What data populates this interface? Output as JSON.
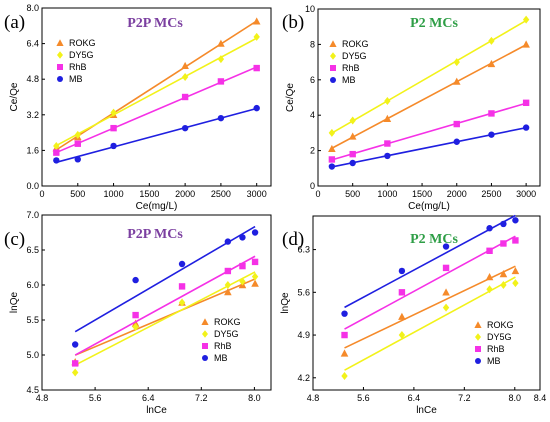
{
  "colors": {
    "ROKG": "#f58a2a",
    "DY5G": "#f2f21a",
    "RhB": "#f531e6",
    "MB": "#1f1fe0",
    "title_purple": "#7b3fa0",
    "title_green": "#2e9e46"
  },
  "chart_data": [
    {
      "type": "scatter",
      "panel_label": "(a)",
      "title": "P2P MCs",
      "title_color": "purple",
      "xlabel": "Ce(mg/L)",
      "ylabel": "Ce/Qe",
      "xlim": [
        0,
        3200
      ],
      "ylim": [
        0.0,
        8.0
      ],
      "xticks": [
        "0",
        "500",
        "1000",
        "1500",
        "2000",
        "2500",
        "3000"
      ],
      "yticks": [
        "0.0",
        "1.6",
        "3.2",
        "4.8",
        "6.4",
        "8.0"
      ],
      "legend_position": "top-left",
      "series": [
        {
          "name": "ROKG",
          "marker": "triangle",
          "x": [
            200,
            500,
            1000,
            2000,
            2500,
            3000
          ],
          "y": [
            1.7,
            2.2,
            3.2,
            5.4,
            6.4,
            7.4
          ]
        },
        {
          "name": "DY5G",
          "marker": "diamond",
          "x": [
            200,
            500,
            1000,
            2000,
            2500,
            3000
          ],
          "y": [
            1.8,
            2.3,
            3.3,
            4.9,
            5.7,
            6.7
          ]
        },
        {
          "name": "RhB",
          "marker": "square",
          "x": [
            200,
            500,
            1000,
            2000,
            2500,
            3000
          ],
          "y": [
            1.5,
            1.9,
            2.6,
            4.0,
            4.7,
            5.3
          ]
        },
        {
          "name": "MB",
          "marker": "circle",
          "x": [
            200,
            500,
            1000,
            2000,
            2500,
            3000
          ],
          "y": [
            1.15,
            1.2,
            1.8,
            2.6,
            3.05,
            3.5
          ]
        }
      ]
    },
    {
      "type": "scatter",
      "panel_label": "(b)",
      "title": "P2 MCs",
      "title_color": "green",
      "xlabel": "Ce(mg/L)",
      "ylabel": "Ce/Qe",
      "xlim": [
        0,
        3200
      ],
      "ylim": [
        0,
        10
      ],
      "xticks": [
        "0",
        "500",
        "1000",
        "1500",
        "2000",
        "2500",
        "3000"
      ],
      "yticks": [
        "0",
        "2",
        "4",
        "6",
        "8",
        "10"
      ],
      "legend_position": "top-left",
      "series": [
        {
          "name": "ROKG",
          "marker": "triangle",
          "x": [
            200,
            500,
            1000,
            2000,
            2500,
            3000
          ],
          "y": [
            2.1,
            2.8,
            3.8,
            5.9,
            6.9,
            8.0
          ]
        },
        {
          "name": "DY5G",
          "marker": "diamond",
          "x": [
            200,
            500,
            1000,
            2000,
            2500,
            3000
          ],
          "y": [
            3.0,
            3.7,
            4.8,
            7.0,
            8.2,
            9.4
          ]
        },
        {
          "name": "RhB",
          "marker": "square",
          "x": [
            200,
            500,
            1000,
            2000,
            2500,
            3000
          ],
          "y": [
            1.5,
            1.8,
            2.4,
            3.5,
            4.1,
            4.7
          ]
        },
        {
          "name": "MB",
          "marker": "circle",
          "x": [
            200,
            500,
            1000,
            2000,
            2500,
            3000
          ],
          "y": [
            1.1,
            1.3,
            1.7,
            2.5,
            2.9,
            3.3
          ]
        }
      ]
    },
    {
      "type": "scatter",
      "panel_label": "(c)",
      "title": "P2P MCs",
      "title_color": "purple",
      "xlabel": "lnCe",
      "ylabel": "lnQe",
      "xlim": [
        4.8,
        8.25
      ],
      "ylim": [
        4.5,
        7.0
      ],
      "xticks": [
        "4.8",
        "5.6",
        "6.4",
        "7.2",
        "8.0"
      ],
      "yticks": [
        "4.5",
        "5.0",
        "5.5",
        "6.0",
        "6.5",
        "7.0"
      ],
      "legend_position": "bottom-right",
      "series": [
        {
          "name": "ROKG",
          "marker": "triangle",
          "x": [
            5.3,
            6.21,
            6.91,
            7.6,
            7.82,
            8.01
          ],
          "y": [
            4.9,
            5.45,
            5.75,
            5.9,
            6.0,
            6.02
          ]
        },
        {
          "name": "DY5G",
          "marker": "diamond",
          "x": [
            5.3,
            6.21,
            6.91,
            7.6,
            7.82,
            8.01
          ],
          "y": [
            4.75,
            5.4,
            5.75,
            6.0,
            6.05,
            6.12
          ]
        },
        {
          "name": "RhB",
          "marker": "square",
          "x": [
            5.3,
            6.21,
            6.91,
            7.6,
            7.82,
            8.01
          ],
          "y": [
            4.88,
            5.57,
            5.98,
            6.2,
            6.27,
            6.33
          ]
        },
        {
          "name": "MB",
          "marker": "circle",
          "x": [
            5.3,
            6.21,
            6.91,
            7.6,
            7.82,
            8.01
          ],
          "y": [
            5.15,
            6.07,
            6.3,
            6.62,
            6.68,
            6.75
          ]
        }
      ]
    },
    {
      "type": "scatter",
      "panel_label": "(d)",
      "title": "P2 MCs",
      "title_color": "green",
      "xlabel": "lnCe",
      "ylabel": "lnQe",
      "xlim": [
        4.8,
        8.4
      ],
      "ylim": [
        4.0,
        6.85
      ],
      "xticks": [
        "4.8",
        "5.6",
        "6.4",
        "7.2",
        "8.0",
        "8.4"
      ],
      "yticks": [
        "4.2",
        "4.9",
        "5.6",
        "6.3"
      ],
      "legend_position": "bottom-right",
      "series": [
        {
          "name": "ROKG",
          "marker": "triangle",
          "x": [
            5.3,
            6.21,
            6.91,
            7.6,
            7.82,
            8.01
          ],
          "y": [
            4.6,
            5.2,
            5.6,
            5.85,
            5.9,
            5.95
          ]
        },
        {
          "name": "DY5G",
          "marker": "diamond",
          "x": [
            5.3,
            6.21,
            6.91,
            7.6,
            7.82,
            8.01
          ],
          "y": [
            4.23,
            4.9,
            5.35,
            5.65,
            5.72,
            5.75
          ]
        },
        {
          "name": "RhB",
          "marker": "square",
          "x": [
            5.3,
            6.21,
            6.91,
            7.6,
            7.82,
            8.01
          ],
          "y": [
            4.9,
            5.6,
            6.0,
            6.28,
            6.4,
            6.45
          ]
        },
        {
          "name": "MB",
          "marker": "circle",
          "x": [
            5.3,
            6.21,
            6.91,
            7.6,
            7.82,
            8.01
          ],
          "y": [
            5.25,
            5.95,
            6.35,
            6.65,
            6.72,
            6.78
          ]
        }
      ]
    }
  ]
}
